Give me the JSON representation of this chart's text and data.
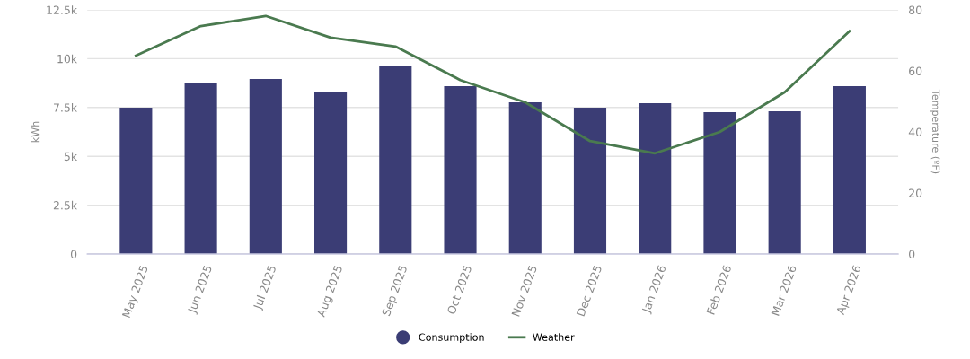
{
  "chart_data": {
    "type": "bar",
    "categories": [
      "May 2025",
      "Jun 2025",
      "Jul 2025",
      "Aug 2025",
      "Sep 2025",
      "Oct 2025",
      "Nov 2025",
      "Dec 2025",
      "Jan 2026",
      "Feb 2026",
      "Mar 2026",
      "Apr 2026"
    ],
    "series": [
      {
        "name": "Consumption",
        "color": "#3b3d75",
        "values": [
          7490,
          8780,
          8960,
          8320,
          9650,
          8590,
          7770,
          7490,
          7720,
          7260,
          7310,
          8590
        ]
      },
      {
        "name": "Weather",
        "type": "line",
        "axis": "y2",
        "color": "#4a7a4f",
        "values": [
          65,
          74.7,
          78,
          70.9,
          68,
          57,
          49.7,
          37,
          33,
          40,
          53,
          73
        ]
      }
    ],
    "ylabel": "kWh",
    "y2label": "Temperature (ºF)",
    "ylim": [
      0,
      12500
    ],
    "yticks": [
      {
        "value": 0,
        "label": "0"
      },
      {
        "value": 2500,
        "label": "2.5k"
      },
      {
        "value": 5000,
        "label": "5k"
      },
      {
        "value": 7500,
        "label": "7.5k"
      },
      {
        "value": 10000,
        "label": "10k"
      },
      {
        "value": 12500,
        "label": "12.5k"
      }
    ],
    "y2lim": [
      0,
      80
    ],
    "y2ticks": [
      0,
      20,
      40,
      60,
      80
    ],
    "grid": "y",
    "legend": "bottom",
    "marker": "none"
  }
}
